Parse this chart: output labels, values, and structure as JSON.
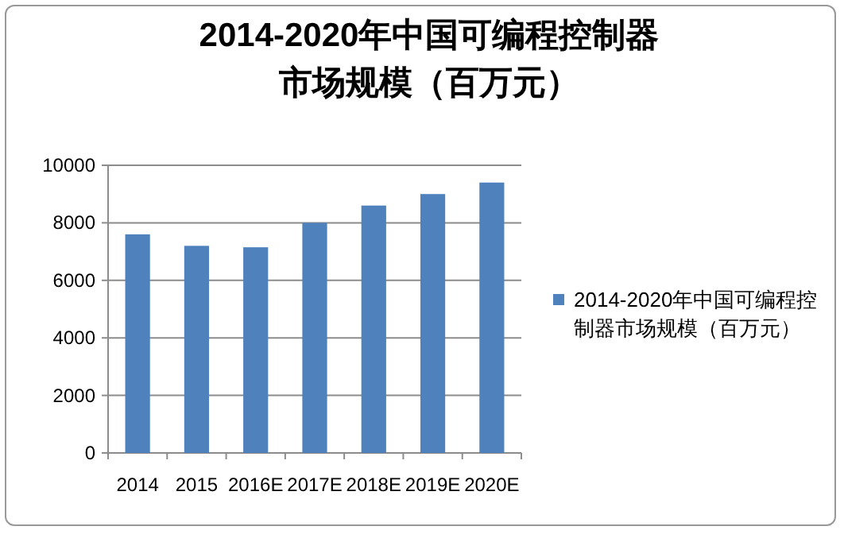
{
  "chart_data": {
    "type": "bar",
    "title": "2014-2020年中国可编程控制器市场规模（百万元）",
    "categories": [
      "2014",
      "2015",
      "2016E",
      "2017E",
      "2018E",
      "2019E",
      "2020E"
    ],
    "series": [
      {
        "name": "2014-2020年中国可编程控制器市场规模（百万元）",
        "color": "#4f81bd",
        "values": [
          7600,
          7200,
          7150,
          8000,
          8600,
          9000,
          9400
        ]
      }
    ],
    "ylim": [
      0,
      10000
    ],
    "yticks": [
      0,
      2000,
      4000,
      6000,
      8000,
      10000
    ],
    "grid": "y",
    "legend": "right"
  }
}
